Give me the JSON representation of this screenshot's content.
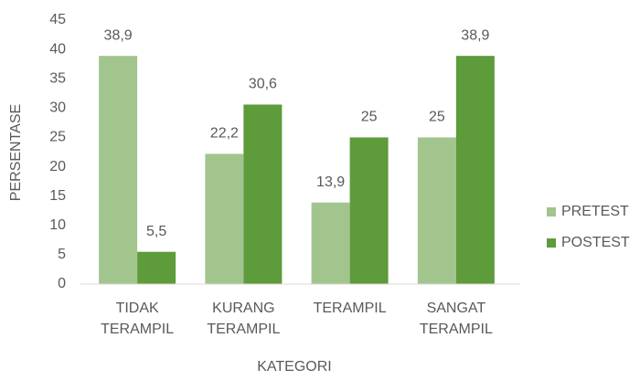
{
  "chart_data": {
    "type": "bar",
    "categories": [
      "TIDAK TERAMPIL",
      "KURANG TERAMPIL",
      "TERAMPIL",
      "SANGAT TERAMPIL"
    ],
    "series": [
      {
        "name": "PRETEST",
        "color": "#a2c58e",
        "values": [
          38.9,
          22.2,
          13.9,
          25
        ],
        "value_labels": [
          "38,9",
          "22,2",
          "13,9",
          "25"
        ]
      },
      {
        "name": "POSTEST",
        "color": "#5e9b3b",
        "values": [
          5.5,
          30.6,
          25,
          38.9
        ],
        "value_labels": [
          "5,5",
          "30,6",
          "25",
          "38,9"
        ]
      }
    ],
    "xlabel": "KATEGORI",
    "ylabel": "PERSENTASE",
    "ylim": [
      0,
      45
    ],
    "yticks": [
      0,
      5,
      10,
      15,
      20,
      25,
      30,
      35,
      40,
      45
    ],
    "grid": false,
    "legend": "right"
  }
}
